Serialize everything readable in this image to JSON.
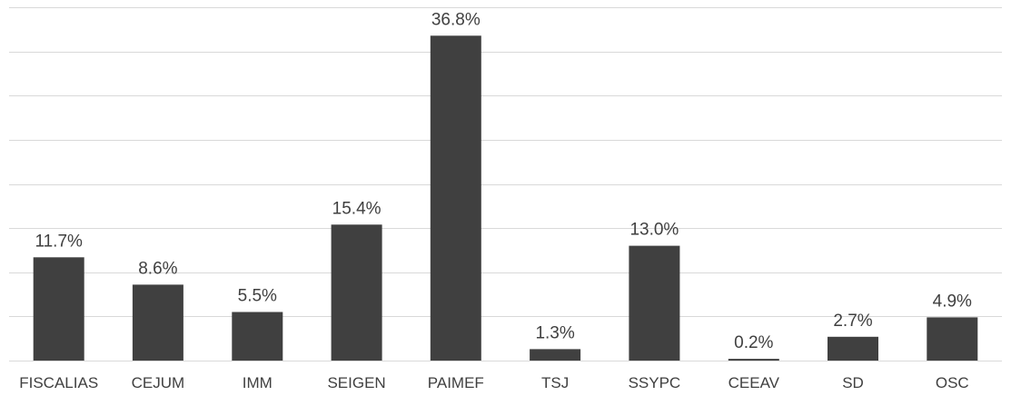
{
  "chart_data": {
    "type": "bar",
    "categories": [
      "FISCALIAS",
      "CEJUM",
      "IMM",
      "SEIGEN",
      "PAIMEF",
      "TSJ",
      "SSYPC",
      "CEEAV",
      "SD",
      "OSC"
    ],
    "values": [
      11.7,
      8.6,
      5.5,
      15.4,
      36.8,
      1.3,
      13.0,
      0.2,
      2.7,
      4.9
    ],
    "data_labels": [
      "11.7%",
      "8.6%",
      "5.5%",
      "15.4%",
      "36.8%",
      "1.3%",
      "13.0%",
      "0.2%",
      "2.7%",
      "4.9%"
    ],
    "title": "",
    "xlabel": "",
    "ylabel": "",
    "ylim": [
      0,
      40
    ],
    "grid": true,
    "grid_step": 5,
    "legend": "none",
    "bar_color": "#404040",
    "grid_color": "#d9d9d9",
    "text_color": "#404040"
  }
}
